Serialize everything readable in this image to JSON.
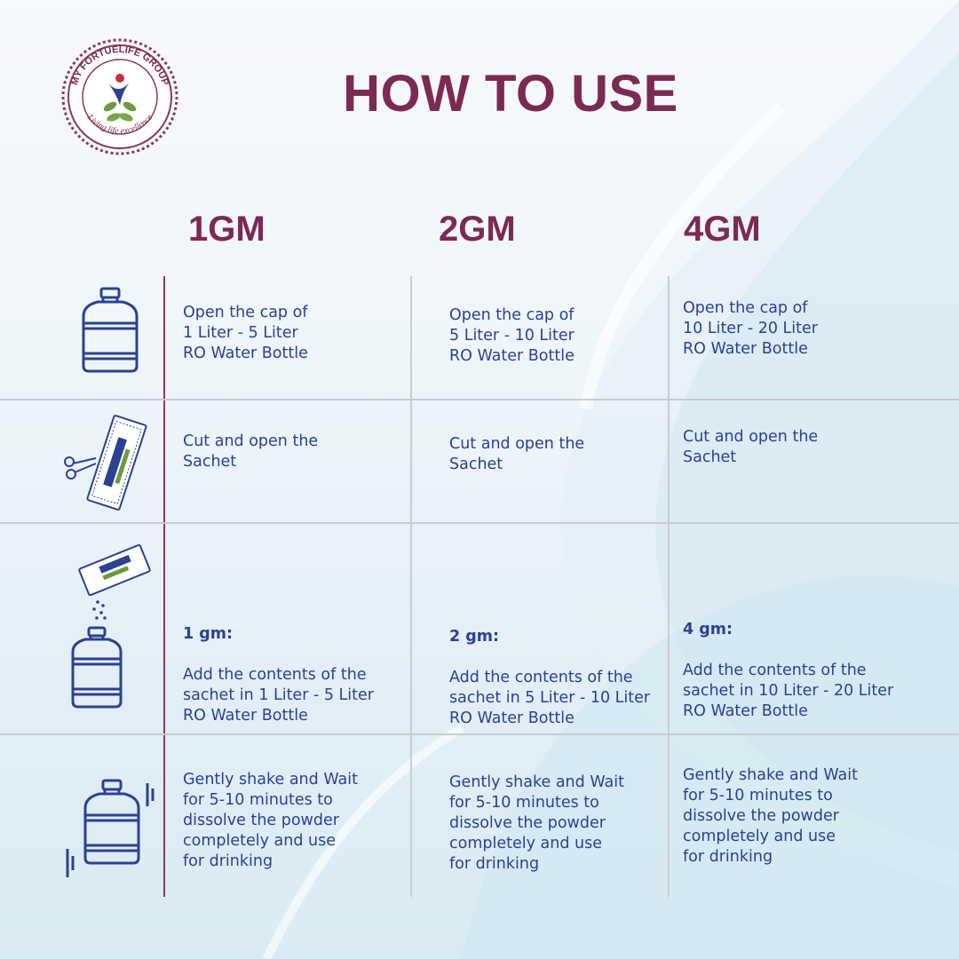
{
  "logo": {
    "ring_text": "MY FORTUELIFE GROUP",
    "tagline": "Living life excellence"
  },
  "title": "HOW TO USE",
  "columns": [
    "1GM",
    "2GM",
    "4GM"
  ],
  "rows": [
    {
      "icon": "water-bottle-icon",
      "cells": [
        {
          "text": "Open the cap of\n1 Liter - 5 Liter\nRO Water Bottle"
        },
        {
          "text": "Open the cap of\n5 Liter - 10 Liter\nRO Water Bottle"
        },
        {
          "text": "Open the cap of\n10 Liter - 20 Liter\nRO Water Bottle"
        }
      ]
    },
    {
      "icon": "cut-sachet-icon",
      "cells": [
        {
          "text": "Cut and open the\nSachet"
        },
        {
          "text": "Cut and open the\nSachet"
        },
        {
          "text": "Cut and open the\nSachet"
        }
      ]
    },
    {
      "icon": "pour-sachet-icon",
      "cells": [
        {
          "label": "1 gm:",
          "text": "Add the contents of the\nsachet in 1 Liter - 5 Liter\nRO Water Bottle"
        },
        {
          "label": "2 gm:",
          "text": "Add the contents of the\nsachet in 5 Liter - 10 Liter\nRO Water Bottle"
        },
        {
          "label": "4 gm:",
          "text": "Add the contents of the\nsachet in 10 Liter - 20 Liter\nRO Water Bottle"
        }
      ]
    },
    {
      "icon": "shake-bottle-icon",
      "cells": [
        {
          "text": "Gently shake and Wait\nfor 5-10 minutes to\ndissolve the powder\ncompletely and use\nfor drinking"
        },
        {
          "text": "Gently shake and Wait\nfor 5-10 minutes to\ndissolve the powder\ncompletely and use\nfor drinking"
        },
        {
          "text": "Gently shake and Wait\nfor 5-10 minutes to\ndissolve the powder\ncompletely and use\nfor drinking"
        }
      ]
    }
  ],
  "colors": {
    "title": "#7b2a52",
    "text": "#2b4192",
    "icon": "#2b4192",
    "grid": "#c6cbd0",
    "accent_line": "#8a3a5e"
  }
}
